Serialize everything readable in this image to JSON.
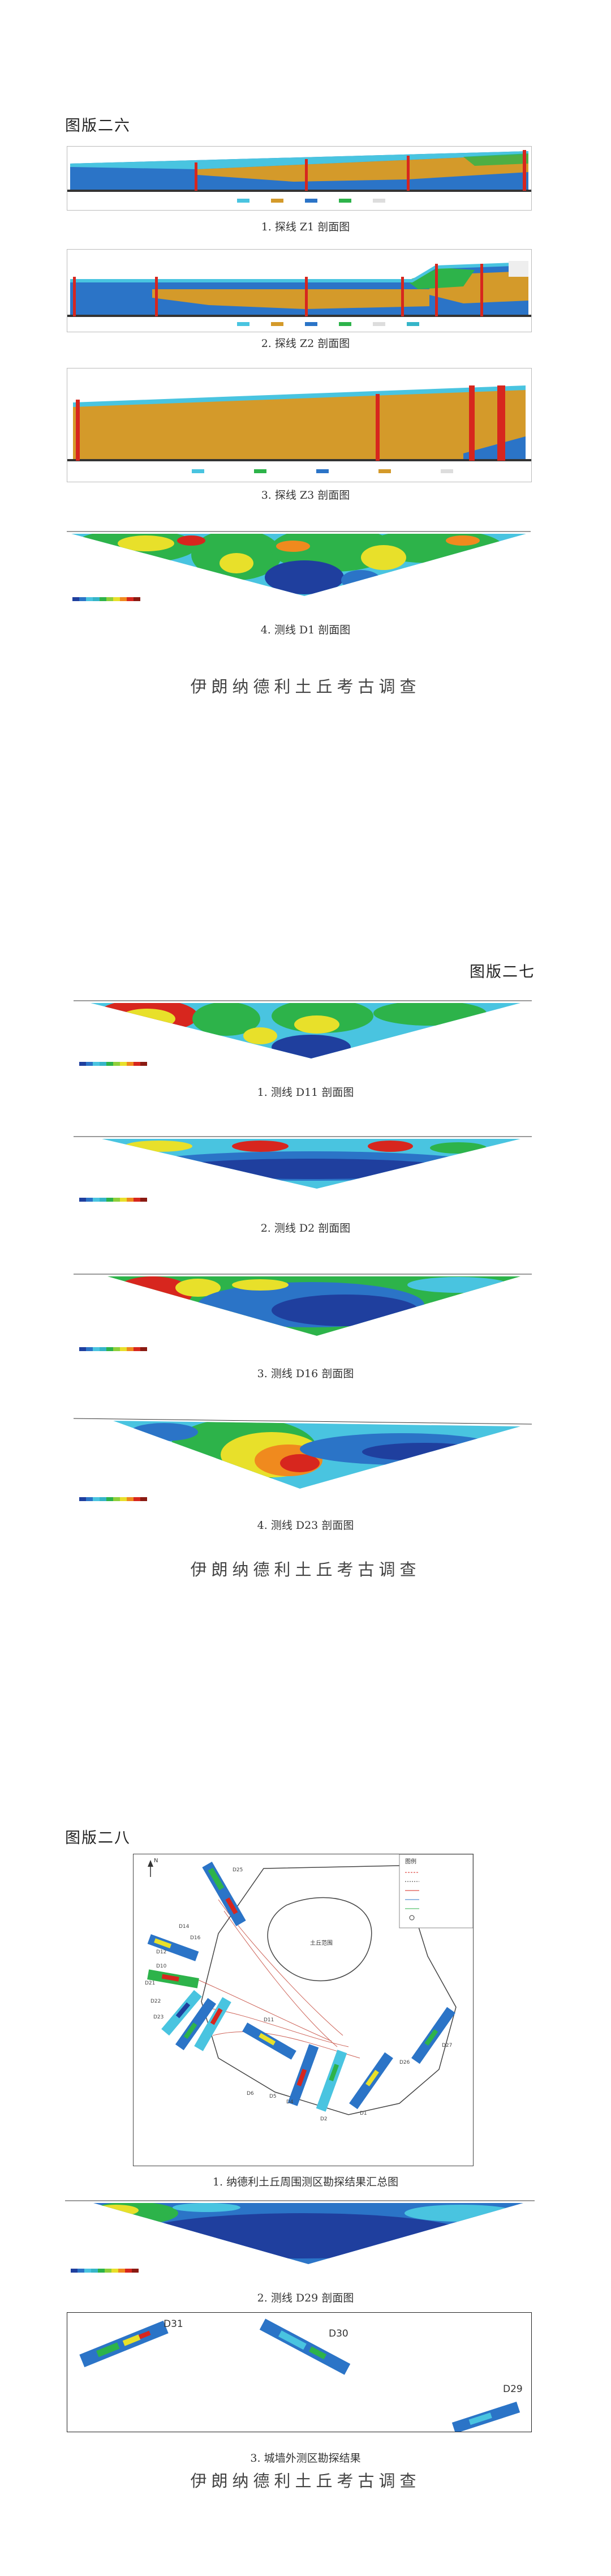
{
  "plates": [
    {
      "title": "图版二六",
      "captions": [
        "1. 探线 Z1 剖面图",
        "2. 探线 Z2 剖面图",
        "3. 探线 Z3 剖面图",
        "4. 测线 D1 剖面图"
      ],
      "footer": "伊朗纳德利土丘考古调查"
    },
    {
      "title": "图版二七",
      "captions": [
        "1. 测线 D11 剖面图",
        "2. 测线 D2 剖面图",
        "3. 测线 D16 剖面图",
        "4. 测线 D23 剖面图"
      ],
      "footer": "伊朗纳德利土丘考古调查"
    },
    {
      "title": "图版二八",
      "captions": [
        "1. 纳德利土丘周围测区勘探结果汇总图",
        "2. 测线 D29 剖面图",
        "3. 城墙外测区勘探结果"
      ],
      "footer": "伊朗纳德利土丘考古调查"
    }
  ],
  "map": {
    "legend_title": "图例",
    "mound_label": "土丘范围",
    "north": "N",
    "line_labels": [
      "D25",
      "D14",
      "D16",
      "D12",
      "D10",
      "D21",
      "D22",
      "D23",
      "D11",
      "D6",
      "D5",
      "D4",
      "D2",
      "D1",
      "D26",
      "D27",
      "D30",
      "D31",
      "D29"
    ]
  },
  "outer_labels": [
    "D31",
    "D30",
    "D29"
  ],
  "colors": {
    "deep_blue": "#1f3f9e",
    "blue": "#2b74c7",
    "cyan": "#49c4e0",
    "green": "#2db34a",
    "yellow": "#e8e02a",
    "orange": "#f08a1e",
    "red": "#d7261e",
    "tan": "#d49a2a",
    "teal": "#35b5c8"
  }
}
